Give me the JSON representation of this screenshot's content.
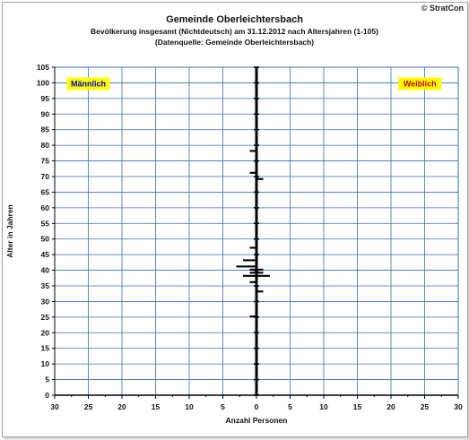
{
  "copyright": "© StratCon",
  "chart_data": {
    "type": "bar",
    "orientation": "horizontal-population-pyramid",
    "title": "Gemeinde Oberleichtersbach",
    "subtitle": "Bevölkerung  insgesamt (Nichtdeutsch) am 31.12.2012 nach Altersjahren (1-105)",
    "source": "(Datenquelle: Gemeinde Oberleichtersbach)",
    "xlabel": "Anzahl Personen",
    "ylabel": "Alter in Jahren",
    "xlim": [
      -30,
      30
    ],
    "ylim": [
      0,
      105
    ],
    "x_ticks": [
      -30,
      -25,
      -20,
      -15,
      -10,
      -5,
      0,
      5,
      10,
      15,
      20,
      25,
      30
    ],
    "x_tick_labels": [
      "30",
      "25",
      "20",
      "15",
      "10",
      "5",
      "0",
      "5",
      "10",
      "15",
      "20",
      "25",
      "30"
    ],
    "y_ticks": [
      0,
      5,
      10,
      15,
      20,
      25,
      30,
      35,
      40,
      45,
      50,
      55,
      60,
      65,
      70,
      75,
      80,
      85,
      90,
      95,
      100,
      105
    ],
    "grid": true,
    "legend": [
      {
        "name": "Männlich",
        "position": "top-left",
        "color": "#0000cc",
        "background": "#ffff00"
      },
      {
        "name": "Weiblich",
        "position": "top-right",
        "color": "#cc0000",
        "background": "#ffff00"
      }
    ],
    "series": [
      {
        "name": "Männlich",
        "side": "left",
        "ages": [
          25,
          36,
          38,
          39,
          40,
          41,
          43,
          47,
          71,
          78
        ],
        "values": [
          1,
          1,
          2,
          1,
          1,
          3,
          2,
          1,
          1,
          1
        ]
      },
      {
        "name": "Weiblich",
        "side": "right",
        "ages": [
          33,
          38,
          39,
          40,
          69
        ],
        "values": [
          1,
          2,
          1,
          1,
          1
        ]
      }
    ]
  }
}
